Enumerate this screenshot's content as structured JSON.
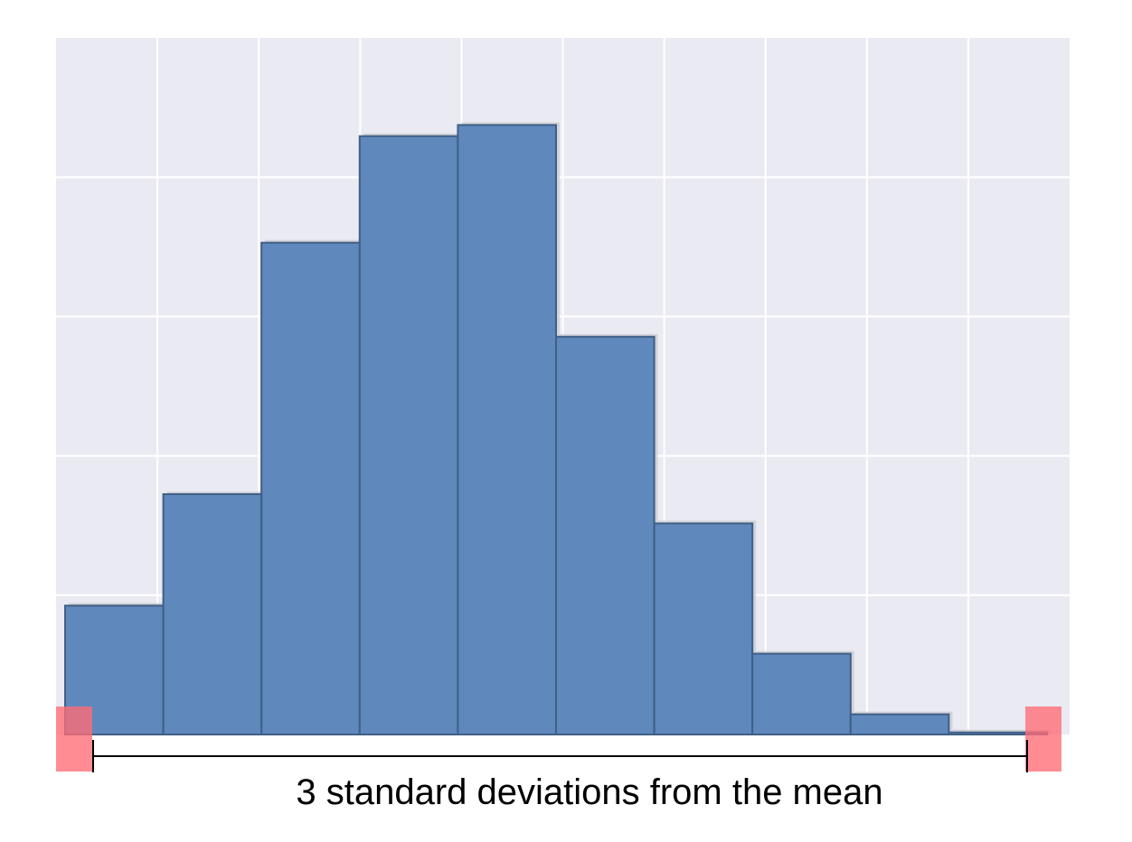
{
  "chart_data": {
    "type": "bar",
    "title": "",
    "xlabel": "",
    "ylabel": "",
    "grid": true,
    "bins": 10,
    "values": [
      18.5,
      34.5,
      70.6,
      85.9,
      87.5,
      57.1,
      30.3,
      11.6,
      2.9,
      0.3
    ],
    "ylim": [
      0,
      100
    ],
    "vertical_gridlines": 9,
    "horizontal_gridlines": 4,
    "colors": {
      "plot_background": "#eaeaf2",
      "grid": "#ffffff",
      "bar_fill": "#5f88bc",
      "bar_edge": "#3f5f85",
      "bar_shadow": "#c9cad2",
      "marker": "#ff6b75"
    },
    "annotation": {
      "text": "3 standard deviations from the mean",
      "span": "full-range",
      "markers": [
        "left-end",
        "right-end"
      ]
    }
  }
}
